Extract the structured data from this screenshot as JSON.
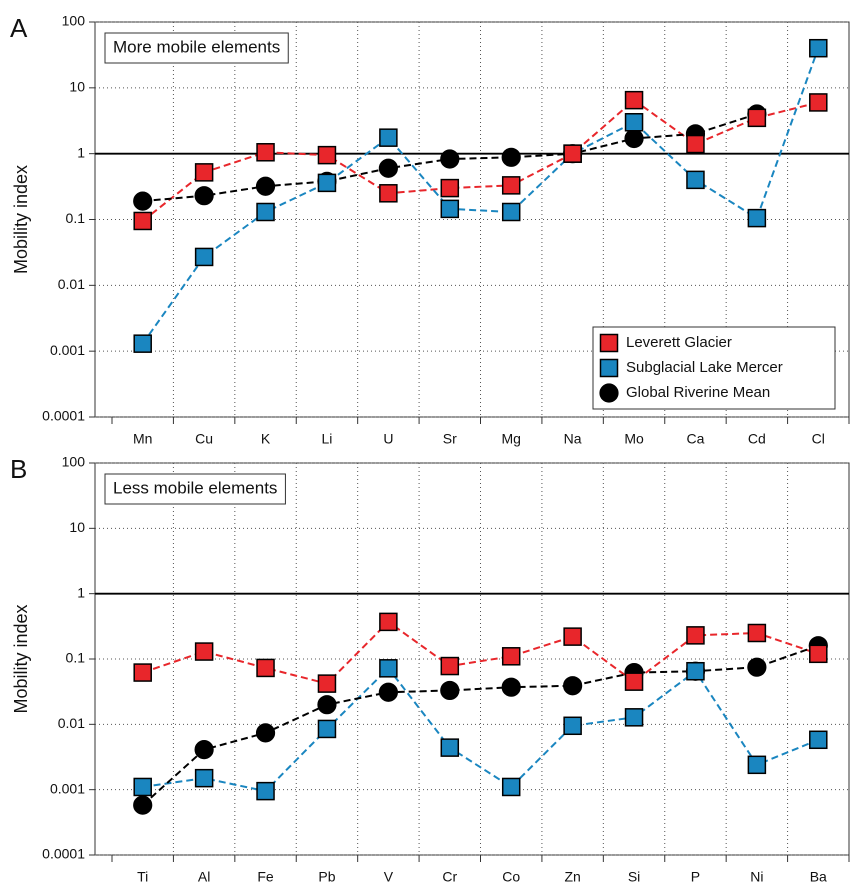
{
  "chart_data": [
    {
      "type": "line",
      "panel_label": "A",
      "annotation": "More mobile elements",
      "y_label": "Mobility index",
      "log_scale": true,
      "grid": true,
      "hline": 1,
      "legend": "lower right",
      "ylim": [
        0.0001,
        100
      ],
      "yticks": [
        0.0001,
        0.001,
        0.01,
        0.1,
        1,
        10,
        100
      ],
      "categories": [
        "Mn",
        "Cu",
        "K",
        "Li",
        "U",
        "Sr",
        "Mg",
        "Na",
        "Mo",
        "Ca",
        "Cd",
        "Cl"
      ],
      "series": [
        {
          "name": "Leverett Glacier",
          "color": "#e8262b",
          "marker": "square",
          "values": [
            0.095,
            0.52,
            1.05,
            0.95,
            0.25,
            0.3,
            0.33,
            1.0,
            6.5,
            1.4,
            3.5,
            6.0
          ]
        },
        {
          "name": "Subglacial Lake Mercer",
          "color": "#1a86c0",
          "marker": "square",
          "values": [
            0.0013,
            0.027,
            0.13,
            0.36,
            1.75,
            0.145,
            0.13,
            1.0,
            3.0,
            0.4,
            0.105,
            40
          ]
        },
        {
          "name": "Global Riverine Mean",
          "color": "#000000",
          "marker": "circle",
          "values": [
            0.19,
            0.23,
            0.32,
            0.38,
            0.6,
            0.83,
            0.88,
            1.0,
            1.7,
            2.0,
            4.0,
            null
          ]
        }
      ]
    },
    {
      "type": "line",
      "panel_label": "B",
      "annotation": "Less mobile elements",
      "y_label": "Mobility index",
      "log_scale": true,
      "grid": true,
      "hline": 1,
      "ylim": [
        0.0001,
        100
      ],
      "yticks": [
        0.0001,
        0.001,
        0.01,
        0.1,
        1,
        10,
        100
      ],
      "categories": [
        "Ti",
        "Al",
        "Fe",
        "Pb",
        "V",
        "Cr",
        "Co",
        "Zn",
        "Si",
        "P",
        "Ni",
        "Ba"
      ],
      "series": [
        {
          "color": "#e8262b",
          "marker": "square",
          "values": [
            0.062,
            0.13,
            0.073,
            0.042,
            0.37,
            0.078,
            0.11,
            0.22,
            0.045,
            0.23,
            0.25,
            0.12
          ]
        },
        {
          "color": "#1a86c0",
          "marker": "square",
          "values": [
            0.0011,
            0.0015,
            0.00095,
            0.0085,
            0.072,
            0.0044,
            0.0011,
            0.0095,
            0.0128,
            0.065,
            0.0024,
            0.0058
          ]
        },
        {
          "color": "#000000",
          "marker": "circle",
          "values": [
            0.00058,
            0.0041,
            0.0074,
            0.02,
            0.031,
            0.033,
            0.037,
            0.039,
            0.062,
            0.065,
            0.075,
            0.16
          ]
        }
      ]
    }
  ]
}
